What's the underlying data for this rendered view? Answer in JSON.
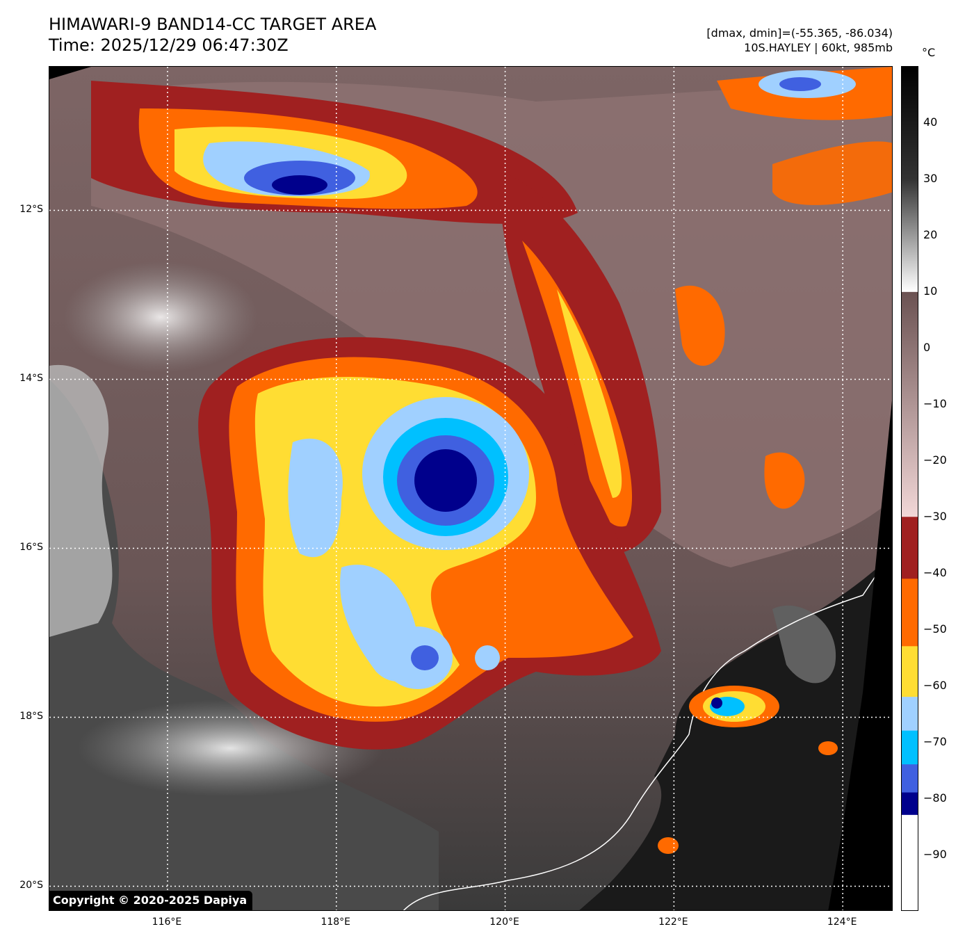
{
  "title": {
    "line1": "HIMAWARI-9 BAND14-CC TARGET AREA",
    "line2": "Time: 2025/12/29 06:47:30Z"
  },
  "info": {
    "range": "[dmax, dmin]=(-55.365, -86.034)",
    "storm": "10S.HAYLEY | 60kt, 985mb"
  },
  "copyright": "Copyright © 2020-2025 Dapiya",
  "axes": {
    "lat_labels": [
      "12°S",
      "14°S",
      "16°S",
      "18°S",
      "20°S"
    ],
    "lon_labels": [
      "116°E",
      "118°E",
      "120°E",
      "122°E",
      "124°E"
    ],
    "lat_values": [
      -12,
      -14,
      -16,
      -18,
      -20
    ],
    "lon_values": [
      116,
      118,
      120,
      122,
      124
    ],
    "lon_range": [
      114.6,
      124.6
    ],
    "lat_range": [
      -10.3,
      -20.3
    ],
    "grid": true
  },
  "colorbar": {
    "unit": "°C",
    "tick_labels": [
      "40",
      "30",
      "20",
      "10",
      "0",
      "−10",
      "−20",
      "−30",
      "−40",
      "−50",
      "−60",
      "−70",
      "−80",
      "−90"
    ],
    "tick_values": [
      40,
      30,
      20,
      10,
      0,
      -10,
      -20,
      -30,
      -40,
      -50,
      -60,
      -70,
      -80,
      -90
    ],
    "range": [
      50,
      -100
    ],
    "colors": {
      "warm": "#000000",
      "mid": "#ffffff",
      "brown": "#6b5252",
      "pink": "#f2d7d7",
      "dark_red": "#a02020",
      "orange": "#ff6a00",
      "yellow": "#ffdd33",
      "light_blue": "#a0d0ff",
      "cyan": "#00c0ff",
      "royal_blue": "#4060e0",
      "navy": "#00008c",
      "white": "#ffffff"
    }
  }
}
